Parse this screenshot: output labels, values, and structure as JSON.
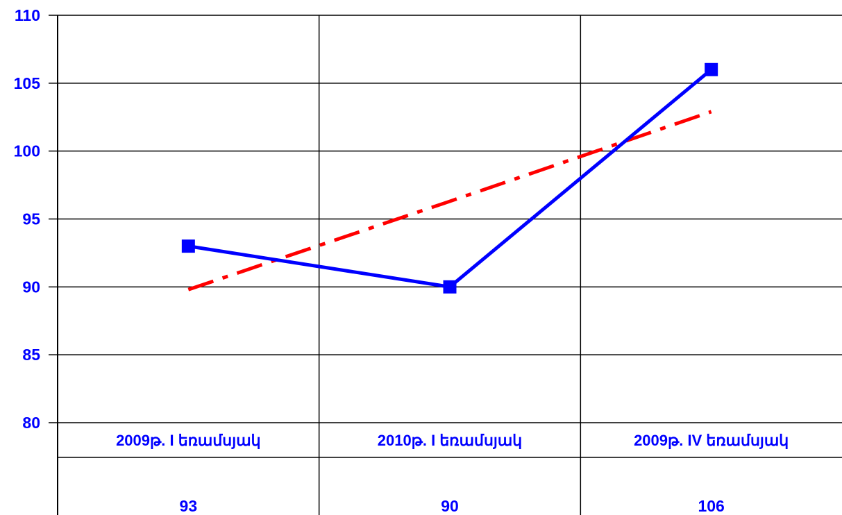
{
  "chart_data": {
    "type": "line",
    "categories": [
      "2009թ. I եռամսյակ",
      "2010թ. I եռամսյակ",
      "2009թ. IV եռամսյակ"
    ],
    "series": [
      {
        "values": [
          93,
          90,
          106
        ],
        "color": "#0000ff",
        "style": "solid",
        "marker": "square"
      },
      {
        "values": [
          89.8,
          96.3,
          102.9
        ],
        "color": "#ff0000",
        "style": "dash-dot",
        "marker": "none",
        "kind": "trendline"
      }
    ],
    "table_values": [
      "93",
      "90",
      "106"
    ],
    "yticks": [
      "80",
      "85",
      "90",
      "95",
      "100",
      "105",
      "110"
    ],
    "ylim": [
      80,
      110
    ],
    "grid": true,
    "legend": "none",
    "colors": {
      "text": "#0000ff",
      "grid": "#000000"
    }
  }
}
